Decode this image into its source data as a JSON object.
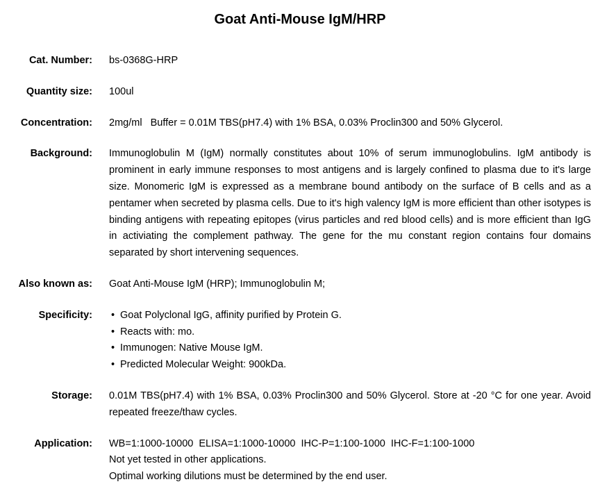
{
  "title": "Goat Anti-Mouse IgM/HRP",
  "fields": {
    "cat_number": {
      "label": "Cat. Number:",
      "value": "bs-0368G-HRP"
    },
    "quantity": {
      "label": "Quantity size:",
      "value": "100ul"
    },
    "concentration": {
      "label": "Concentration:",
      "value": "2mg/ml   Buffer = 0.01M TBS(pH7.4) with 1% BSA, 0.03% Proclin300 and 50% Glycerol."
    },
    "background": {
      "label": "Background:",
      "value": "Immunoglobulin M (IgM) normally constitutes about 10% of serum immunoglobulins. IgM antibody is prominent in early immune responses to most antigens and is largely confined to plasma due to it's large size. Monomeric IgM is expressed as a membrane bound antibody on the surface of B cells and as a pentamer when secreted by plasma cells. Due to it's high valency IgM is more efficient than other isotypes is binding antigens with repeating epitopes (virus particles and red blood cells) and is more efficient than IgG in activiating the complement pathway. The gene for the mu constant region contains four domains separated by short intervening sequences."
    },
    "aka": {
      "label": "Also known as:",
      "value": "Goat Anti-Mouse IgM (HRP); Immunoglobulin M;"
    },
    "specificity": {
      "label": "Specificity:",
      "items": [
        "Goat Polyclonal IgG, affinity purified by Protein G.",
        "Reacts with: mo.",
        "Immunogen: Native Mouse IgM.",
        "Predicted Molecular Weight: 900kDa."
      ]
    },
    "storage": {
      "label": "Storage:",
      "value": "0.01M TBS(pH7.4) with 1% BSA, 0.03% Proclin300 and 50% Glycerol. Store at -20 °C for one year. Avoid repeated freeze/thaw cycles."
    },
    "application": {
      "label": "Application:",
      "lines": [
        "WB=1:1000-10000  ELISA=1:1000-10000  IHC-P=1:100-1000  IHC-F=1:100-1000",
        "Not yet tested in other applications.",
        "Optimal working dilutions must be determined by the end user."
      ]
    }
  }
}
